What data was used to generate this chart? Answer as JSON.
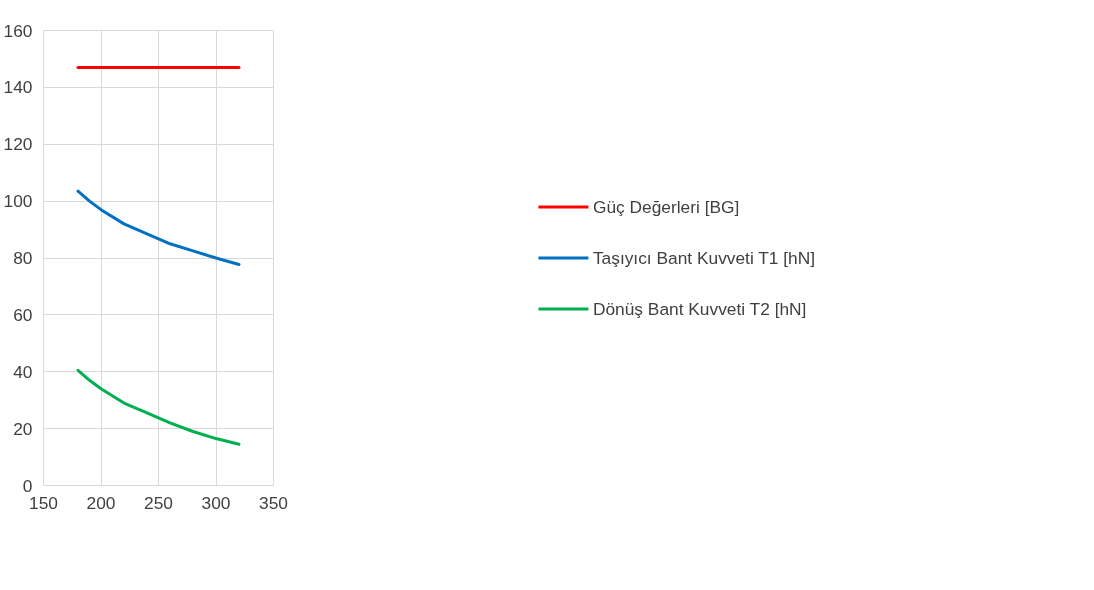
{
  "chart_data": {
    "type": "line",
    "xlim": [
      150,
      350
    ],
    "ylim": [
      0,
      160
    ],
    "xticks": [
      150,
      200,
      250,
      300,
      350
    ],
    "yticks": [
      0,
      20,
      40,
      60,
      80,
      100,
      120,
      140,
      160
    ],
    "grid": true,
    "legend": "right",
    "x": [
      180,
      190,
      200,
      220,
      240,
      260,
      280,
      300,
      320
    ],
    "series": [
      {
        "name": "Güç Değerleri [BG]",
        "color": "#ff0000",
        "values": [
          147,
          147,
          147,
          147,
          147,
          147,
          147,
          147,
          147
        ]
      },
      {
        "name": "Taşıyıcı Bant Kuvveti T1 [hN]",
        "color": "#0070c0",
        "values": [
          103.5,
          100,
          97,
          92,
          88.5,
          85,
          82.5,
          80,
          77.7
        ]
      },
      {
        "name": "Dönüş Bant Kuvveti T2 [hN]",
        "color": "#00b050",
        "values": [
          40.5,
          37,
          34,
          29,
          25.5,
          22,
          19,
          16.5,
          14.5
        ]
      }
    ]
  }
}
